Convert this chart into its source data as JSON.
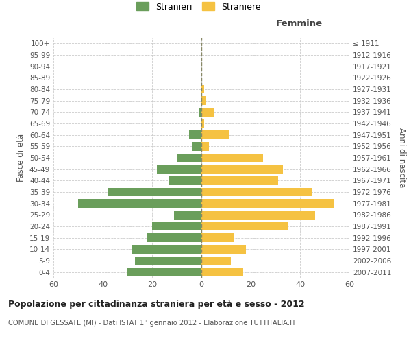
{
  "age_groups": [
    "0-4",
    "5-9",
    "10-14",
    "15-19",
    "20-24",
    "25-29",
    "30-34",
    "35-39",
    "40-44",
    "45-49",
    "50-54",
    "55-59",
    "60-64",
    "65-69",
    "70-74",
    "75-79",
    "80-84",
    "85-89",
    "90-94",
    "95-99",
    "100+"
  ],
  "birth_years": [
    "2007-2011",
    "2002-2006",
    "1997-2001",
    "1992-1996",
    "1987-1991",
    "1982-1986",
    "1977-1981",
    "1972-1976",
    "1967-1971",
    "1962-1966",
    "1957-1961",
    "1952-1956",
    "1947-1951",
    "1942-1946",
    "1937-1941",
    "1932-1936",
    "1927-1931",
    "1922-1926",
    "1917-1921",
    "1912-1916",
    "≤ 1911"
  ],
  "males": [
    30,
    27,
    28,
    22,
    20,
    11,
    50,
    38,
    13,
    18,
    10,
    4,
    5,
    0,
    1,
    0,
    0,
    0,
    0,
    0,
    0
  ],
  "females": [
    17,
    12,
    18,
    13,
    35,
    46,
    54,
    45,
    31,
    33,
    25,
    3,
    11,
    1,
    5,
    2,
    1,
    0,
    0,
    0,
    0
  ],
  "male_color": "#6a9e5b",
  "female_color": "#f5c242",
  "background_color": "#ffffff",
  "grid_color": "#cccccc",
  "center_line_color": "#888866",
  "title": "Popolazione per cittadinanza straniera per età e sesso - 2012",
  "subtitle": "COMUNE DI GESSATE (MI) - Dati ISTAT 1° gennaio 2012 - Elaborazione TUTTITALIA.IT",
  "xlabel_right": "Femmine",
  "ylabel_left": "Fasce di età",
  "ylabel_right": "Anni di nascita",
  "legend_males": "Stranieri",
  "legend_females": "Straniere",
  "xlim": 60
}
